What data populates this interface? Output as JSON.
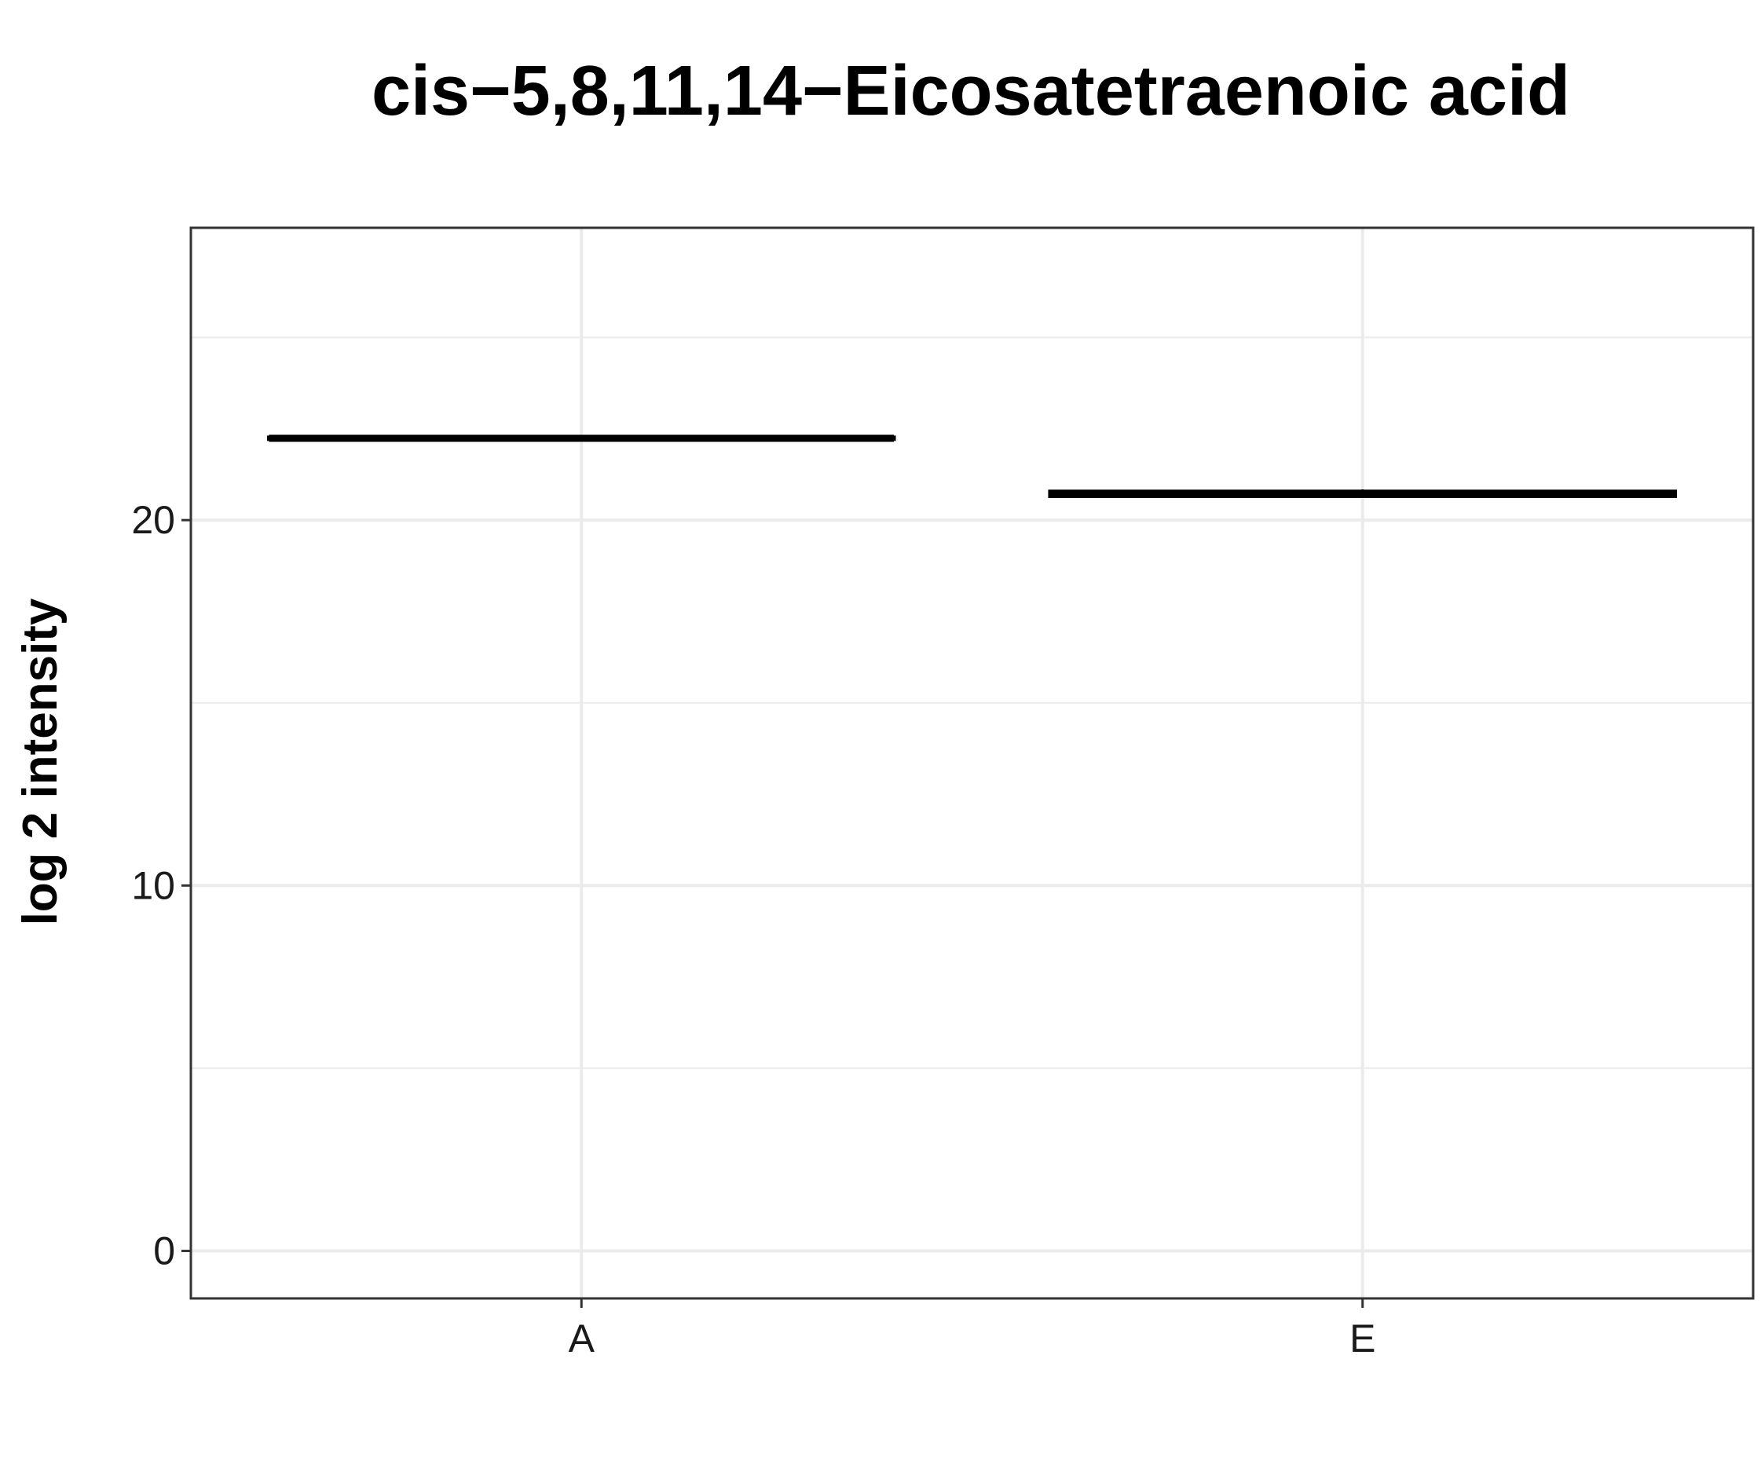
{
  "chart_data": {
    "type": "box",
    "title": "cis−5,8,11,14−Eicosatetraenoic acid",
    "xlabel": "",
    "ylabel": "log 2 intensity",
    "categories": [
      "A",
      "E"
    ],
    "ylim": [
      -1.3,
      28
    ],
    "yticks": [
      0,
      10,
      20
    ],
    "grid": true,
    "series": [
      {
        "category": "A",
        "min": 22.22,
        "q1": 22.22,
        "median": 22.24,
        "q3": 22.26,
        "max": 22.26
      },
      {
        "category": "E",
        "min": 20.64,
        "q1": 20.66,
        "median": 20.72,
        "q3": 20.78,
        "max": 20.84
      }
    ],
    "colors": {
      "box": "#000000",
      "grid": "#ebebeb",
      "panel_border": "#333333",
      "axis_text": "#1a1a1a"
    }
  }
}
